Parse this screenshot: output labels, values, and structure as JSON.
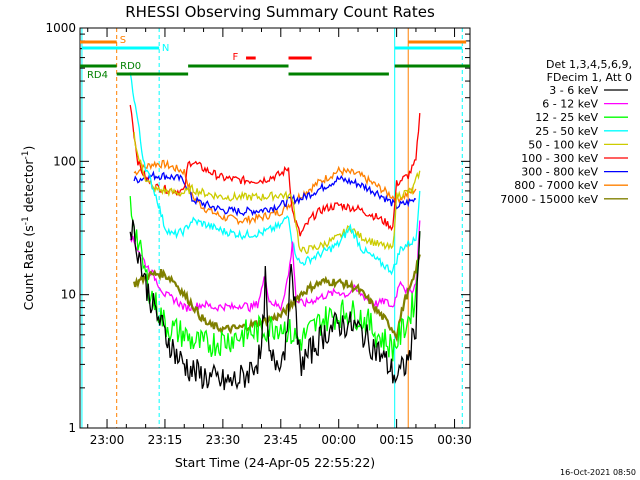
{
  "chart_data": {
    "type": "line",
    "title": "RHESSI Observing Summary Count Rates",
    "xlabel": "Start Time (24-Apr-05 22:55:22)",
    "ylabel_main": "Count Rate (s",
    "ylabel_sup": "-1",
    "ylabel_rest": " detector",
    "ylabel_sup2": "-1",
    "ylabel_end": ")",
    "y_scale": "log",
    "ylim": [
      1,
      1000
    ],
    "xlim_minutes": [
      -7,
      34
    ],
    "x_ticks": [
      {
        "m": 0,
        "label": "23:00"
      },
      {
        "m": 15,
        "label": "23:15"
      },
      {
        "m": 30,
        "label": "23:30"
      },
      {
        "m": 45,
        "label": "23:45"
      },
      {
        "m": 60,
        "label": "00:00"
      },
      {
        "m": 75,
        "label": "00:15"
      },
      {
        "m": 90,
        "label": "00:30"
      }
    ],
    "y_ticks": [
      {
        "v": 1,
        "label": "1"
      },
      {
        "v": 10,
        "label": "10"
      },
      {
        "v": 100,
        "label": "100"
      },
      {
        "v": 1000,
        "label": "1000"
      }
    ],
    "legend": {
      "header": [
        "Det 1,3,4,5,6,9,",
        "FDecim 1, Att 0"
      ],
      "entries": [
        {
          "label": "3 - 6 keV",
          "color": "#000000"
        },
        {
          "label": "6 - 12 keV",
          "color": "#ff00ff"
        },
        {
          "label": "12 - 25 keV",
          "color": "#00ff00"
        },
        {
          "label": "25 - 50 keV",
          "color": "#00ffff"
        },
        {
          "label": "50 - 100 keV",
          "color": "#cccc00"
        },
        {
          "label": "100 - 300 keV",
          "color": "#ff0000"
        },
        {
          "label": "300 - 800 keV",
          "color": "#0000ff"
        },
        {
          "label": "800 - 7000 keV",
          "color": "#ff8000"
        },
        {
          "label": "7000 - 15000 keV",
          "color": "#808000"
        }
      ]
    },
    "flags": [
      {
        "label": "S",
        "color": "#ff8000"
      },
      {
        "label": "N",
        "color": "#00ffff"
      },
      {
        "label": "RD0",
        "color": "#008000"
      },
      {
        "label": "RD4",
        "color": "#008000"
      },
      {
        "label": "F",
        "color": "#ff0000"
      }
    ],
    "series": [
      {
        "name": "800 - 7000 keV",
        "color": "#ff8000",
        "points": [
          [
            7,
            82
          ],
          [
            9,
            88
          ],
          [
            12,
            96
          ],
          [
            15,
            95
          ],
          [
            18,
            88
          ],
          [
            20,
            84
          ],
          [
            22,
            55
          ],
          [
            25,
            45
          ],
          [
            30,
            38
          ],
          [
            35,
            36
          ],
          [
            40,
            38
          ],
          [
            45,
            42
          ],
          [
            48,
            50
          ],
          [
            50,
            55
          ],
          [
            55,
            70
          ],
          [
            60,
            85
          ],
          [
            65,
            80
          ],
          [
            70,
            65
          ],
          [
            75,
            52
          ],
          [
            77,
            55
          ],
          [
            80,
            62
          ]
        ]
      },
      {
        "name": "300 - 800 keV",
        "color": "#0000ff",
        "points": [
          [
            7,
            72
          ],
          [
            10,
            76
          ],
          [
            12,
            78
          ],
          [
            15,
            78
          ],
          [
            18,
            75
          ],
          [
            20,
            72
          ],
          [
            22,
            52
          ],
          [
            25,
            48
          ],
          [
            30,
            43
          ],
          [
            35,
            42
          ],
          [
            40,
            43
          ],
          [
            45,
            47
          ],
          [
            48,
            52
          ],
          [
            50,
            52
          ],
          [
            55,
            62
          ],
          [
            60,
            74
          ],
          [
            65,
            68
          ],
          [
            70,
            58
          ],
          [
            75,
            46
          ],
          [
            77,
            48
          ],
          [
            80,
            52
          ]
        ]
      },
      {
        "name": "100 - 300 keV",
        "color": "#ff0000",
        "points": [
          [
            6,
            280
          ],
          [
            7,
            160
          ],
          [
            8,
            100
          ],
          [
            9,
            85
          ],
          [
            10,
            75
          ],
          [
            12,
            65
          ],
          [
            15,
            62
          ],
          [
            18,
            60
          ],
          [
            20,
            60
          ],
          [
            21,
            95
          ],
          [
            22,
            100
          ],
          [
            25,
            88
          ],
          [
            30,
            75
          ],
          [
            35,
            72
          ],
          [
            40,
            72
          ],
          [
            45,
            80
          ],
          [
            47,
            90
          ],
          [
            48,
            42
          ],
          [
            50,
            28
          ],
          [
            53,
            38
          ],
          [
            56,
            44
          ],
          [
            60,
            47
          ],
          [
            65,
            44
          ],
          [
            70,
            38
          ],
          [
            72,
            35
          ],
          [
            74,
            32
          ],
          [
            75,
            68
          ],
          [
            77,
            75
          ],
          [
            78,
            78
          ],
          [
            80,
            100
          ],
          [
            81,
            230
          ]
        ]
      },
      {
        "name": "50 - 100 keV",
        "color": "#cccc00",
        "points": [
          [
            7,
            160
          ],
          [
            8,
            110
          ],
          [
            10,
            75
          ],
          [
            12,
            62
          ],
          [
            15,
            60
          ],
          [
            18,
            58
          ],
          [
            20,
            58
          ],
          [
            22,
            62
          ],
          [
            25,
            58
          ],
          [
            30,
            54
          ],
          [
            35,
            54
          ],
          [
            40,
            54
          ],
          [
            45,
            56
          ],
          [
            48,
            54
          ],
          [
            50,
            21
          ],
          [
            55,
            23
          ],
          [
            60,
            27
          ],
          [
            63,
            32
          ],
          [
            65,
            28
          ],
          [
            70,
            24
          ],
          [
            74,
            22
          ],
          [
            75,
            55
          ],
          [
            77,
            58
          ],
          [
            79,
            60
          ],
          [
            81,
            85
          ]
        ]
      },
      {
        "name": "25 - 50 keV",
        "color": "#00ffff",
        "points": [
          [
            6,
            450
          ],
          [
            7,
            300
          ],
          [
            8,
            200
          ],
          [
            9,
            120
          ],
          [
            10,
            90
          ],
          [
            11,
            75
          ],
          [
            12,
            62
          ],
          [
            13,
            52
          ],
          [
            14,
            40
          ],
          [
            15,
            32
          ],
          [
            17,
            28
          ],
          [
            20,
            30
          ],
          [
            22,
            36
          ],
          [
            25,
            34
          ],
          [
            30,
            30
          ],
          [
            35,
            28
          ],
          [
            40,
            29
          ],
          [
            45,
            33
          ],
          [
            47,
            40
          ],
          [
            48,
            24
          ],
          [
            50,
            17
          ],
          [
            55,
            20
          ],
          [
            60,
            24
          ],
          [
            63,
            32
          ],
          [
            66,
            22
          ],
          [
            70,
            18
          ],
          [
            74,
            15
          ],
          [
            76,
            22
          ],
          [
            78,
            24
          ],
          [
            80,
            26
          ],
          [
            81,
            60
          ]
        ]
      },
      {
        "name": "6 - 12 keV",
        "color": "#ff00ff",
        "points": [
          [
            6,
            28
          ],
          [
            8,
            22
          ],
          [
            10,
            17
          ],
          [
            12,
            14
          ],
          [
            15,
            10
          ],
          [
            18,
            9
          ],
          [
            20,
            8
          ],
          [
            22,
            8
          ],
          [
            25,
            8.5
          ],
          [
            28,
            8
          ],
          [
            30,
            8.2
          ],
          [
            33,
            8
          ],
          [
            35,
            8.5
          ],
          [
            37,
            8
          ],
          [
            39,
            8.5
          ],
          [
            41,
            14
          ],
          [
            42,
            9
          ],
          [
            45,
            8
          ],
          [
            47,
            14
          ],
          [
            48,
            24
          ],
          [
            49,
            9
          ],
          [
            51,
            8.5
          ],
          [
            53,
            9
          ],
          [
            55,
            9.5
          ],
          [
            57,
            10
          ],
          [
            60,
            10.5
          ],
          [
            62,
            10
          ],
          [
            64,
            11
          ],
          [
            66,
            10
          ],
          [
            68,
            9
          ],
          [
            70,
            8.5
          ],
          [
            72,
            9
          ],
          [
            74,
            8
          ],
          [
            76,
            13
          ],
          [
            78,
            10
          ],
          [
            80,
            12
          ],
          [
            81,
            36
          ]
        ]
      },
      {
        "name": "7000 - 15000 keV",
        "color": "#808000",
        "points": [
          [
            7,
            12
          ],
          [
            9,
            13
          ],
          [
            11,
            14
          ],
          [
            14,
            14.5
          ],
          [
            17,
            13
          ],
          [
            20,
            10
          ],
          [
            22,
            8.5
          ],
          [
            24,
            7
          ],
          [
            26,
            6
          ],
          [
            30,
            5.5
          ],
          [
            34,
            5.6
          ],
          [
            38,
            6
          ],
          [
            42,
            6.5
          ],
          [
            45,
            7
          ],
          [
            47,
            8
          ],
          [
            50,
            10
          ],
          [
            53,
            11.5
          ],
          [
            56,
            12.5
          ],
          [
            59,
            12.5
          ],
          [
            62,
            12
          ],
          [
            65,
            11
          ],
          [
            68,
            9
          ],
          [
            70,
            7.5
          ],
          [
            72,
            6.5
          ],
          [
            74,
            5.5
          ],
          [
            75,
            5
          ],
          [
            77,
            9
          ],
          [
            79,
            12
          ],
          [
            81,
            20
          ]
        ]
      },
      {
        "name": "12 - 25 keV",
        "color": "#00ff00",
        "points": [
          [
            6,
            48
          ],
          [
            7,
            35
          ],
          [
            8,
            25
          ],
          [
            9,
            18
          ],
          [
            10,
            14
          ],
          [
            11,
            11
          ],
          [
            12,
            9
          ],
          [
            13,
            8
          ],
          [
            15,
            6
          ],
          [
            17,
            5.5
          ],
          [
            20,
            5
          ],
          [
            22,
            4.5
          ],
          [
            25,
            4.2
          ],
          [
            30,
            4.5
          ],
          [
            35,
            5
          ],
          [
            40,
            5.5
          ],
          [
            45,
            6
          ],
          [
            48,
            5
          ],
          [
            50,
            4.5
          ],
          [
            53,
            5.5
          ],
          [
            56,
            6.5
          ],
          [
            59,
            7
          ],
          [
            62,
            7.5
          ],
          [
            65,
            7
          ],
          [
            68,
            6
          ],
          [
            70,
            5
          ],
          [
            72,
            4.5
          ],
          [
            74,
            4
          ],
          [
            76,
            5
          ],
          [
            78,
            6.5
          ],
          [
            80,
            10
          ],
          [
            81,
            30
          ]
        ]
      },
      {
        "name": "3 - 6 keV",
        "color": "#000000",
        "points": [
          [
            6,
            35
          ],
          [
            7,
            28
          ],
          [
            8,
            22
          ],
          [
            9,
            16
          ],
          [
            10,
            12
          ],
          [
            11,
            10
          ],
          [
            12,
            8
          ],
          [
            13,
            7
          ],
          [
            14,
            6
          ],
          [
            15,
            5
          ],
          [
            16,
            4.5
          ],
          [
            17,
            4
          ],
          [
            18,
            3.5
          ],
          [
            19,
            3.2
          ],
          [
            20,
            3
          ],
          [
            22,
            2.7
          ],
          [
            24,
            2.5
          ],
          [
            26,
            2.4
          ],
          [
            28,
            2.3
          ],
          [
            30,
            2.2
          ],
          [
            32,
            2.2
          ],
          [
            34,
            2.3
          ],
          [
            36,
            2.5
          ],
          [
            38,
            3
          ],
          [
            40,
            3.5
          ],
          [
            41,
            13
          ],
          [
            42,
            3.2
          ],
          [
            44,
            3.2
          ],
          [
            46,
            3.8
          ],
          [
            47,
            9
          ],
          [
            48,
            16
          ],
          [
            49,
            6
          ],
          [
            50,
            3
          ],
          [
            52,
            3.5
          ],
          [
            54,
            4.2
          ],
          [
            56,
            5
          ],
          [
            58,
            5.6
          ],
          [
            60,
            6
          ],
          [
            62,
            6
          ],
          [
            64,
            5.8
          ],
          [
            66,
            5.2
          ],
          [
            68,
            4.4
          ],
          [
            70,
            3.8
          ],
          [
            72,
            3.2
          ],
          [
            74,
            2.6
          ],
          [
            75,
            2.4
          ],
          [
            76,
            2.6
          ],
          [
            78,
            3.2
          ],
          [
            80,
            6
          ],
          [
            81,
            30
          ]
        ]
      }
    ],
    "timestamp": "16-Oct-2021 08:50"
  }
}
